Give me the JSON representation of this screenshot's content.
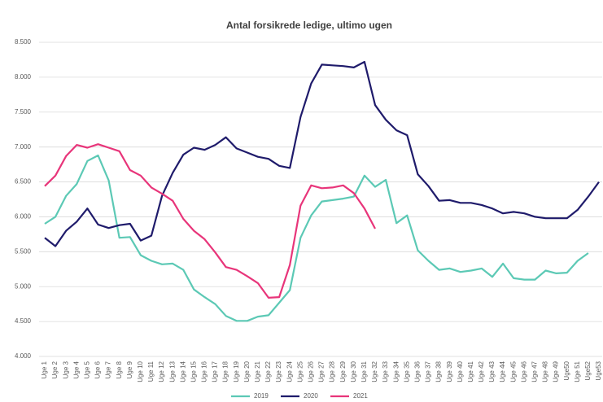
{
  "chart_data": {
    "type": "line",
    "title": "Antal forsikrede ledige, ultimo ugen",
    "categories": [
      "Uge 1",
      "Uge 2",
      "Uge 3",
      "Uge 4",
      "Uge 5",
      "Uge 6",
      "Uge 7",
      "Uge 8",
      "Uge 9",
      "Uge 10",
      "Uge 11",
      "Uge 12",
      "Uge 13",
      "Uge 14",
      "Uge 15",
      "Uge 16",
      "Uge 17",
      "Uge 18",
      "Uge 19",
      "Uge 20",
      "Uge 21",
      "Uge 22",
      "Uge 23",
      "Uge 24",
      "Uge 25",
      "Uge 26",
      "Uge 27",
      "Uge 28",
      "Uge 29",
      "Uge 30",
      "Uge 31",
      "Uge 32",
      "Uge 33",
      "Uge 34",
      "Uge 35",
      "Uge 36",
      "Uge 37",
      "Uge 38",
      "Uge 39",
      "Uge 40",
      "Uge 41",
      "Uge 42",
      "Uge 43",
      "Uge 44",
      "Uge 45",
      "Uge 46",
      "Uge 47",
      "Uge 48",
      "Uge 49",
      "Uge50",
      "Uge 51",
      "Uge52",
      "Uge53"
    ],
    "series": [
      {
        "name": "2019",
        "color": "#5cc9b5",
        "values": [
          5900,
          6000,
          6300,
          6470,
          6800,
          6880,
          6520,
          5700,
          5710,
          5450,
          5370,
          5320,
          5330,
          5240,
          4960,
          4850,
          4750,
          4580,
          4510,
          4510,
          4570,
          4590,
          4770,
          4950,
          5700,
          6020,
          6220,
          6240,
          6260,
          6290,
          6590,
          6430,
          6530,
          5910,
          6020,
          5520,
          5370,
          5240,
          5260,
          5210,
          5230,
          5260,
          5140,
          5330,
          5120,
          5100,
          5100,
          5230,
          5190,
          5200,
          5370,
          5480,
          null
        ]
      },
      {
        "name": "2020",
        "color": "#1f1b6b",
        "values": [
          5700,
          5580,
          5800,
          5930,
          6120,
          5890,
          5840,
          5880,
          5900,
          5660,
          5730,
          6300,
          6630,
          6890,
          6990,
          6960,
          7030,
          7140,
          6980,
          6920,
          6860,
          6830,
          6730,
          6700,
          7430,
          7910,
          8180,
          8170,
          8160,
          8140,
          8220,
          7600,
          7390,
          7240,
          7170,
          6610,
          6440,
          6230,
          6240,
          6200,
          6200,
          6170,
          6120,
          6050,
          6070,
          6050,
          6000,
          5980,
          5980,
          5980,
          6100,
          6290,
          6500
        ]
      },
      {
        "name": "2021",
        "color": "#e8357a",
        "values": [
          6440,
          6590,
          6870,
          7030,
          6990,
          7040,
          6990,
          6940,
          6670,
          6590,
          6420,
          6330,
          6230,
          5970,
          5800,
          5680,
          5490,
          5280,
          5240,
          5150,
          5050,
          4840,
          4850,
          5310,
          6160,
          6450,
          6410,
          6420,
          6450,
          6340,
          6120,
          5830,
          null,
          null,
          null,
          null,
          null,
          null,
          null,
          null,
          null,
          null,
          null,
          null,
          null,
          null,
          null,
          null,
          null,
          null,
          null,
          null,
          null
        ]
      }
    ],
    "ylim": [
      4000,
      8500
    ],
    "yticks": [
      {
        "value": 4000,
        "label": "4.000"
      },
      {
        "value": 4500,
        "label": "4.500"
      },
      {
        "value": 5000,
        "label": "5.000"
      },
      {
        "value": 5500,
        "label": "5.500"
      },
      {
        "value": 6000,
        "label": "6.000"
      },
      {
        "value": 6500,
        "label": "6.500"
      },
      {
        "value": 7000,
        "label": "7.000"
      },
      {
        "value": 7500,
        "label": "7.500"
      },
      {
        "value": 8000,
        "label": "8.000"
      },
      {
        "value": 8500,
        "label": "8.500"
      }
    ],
    "grid": true,
    "legend": "bottom"
  }
}
